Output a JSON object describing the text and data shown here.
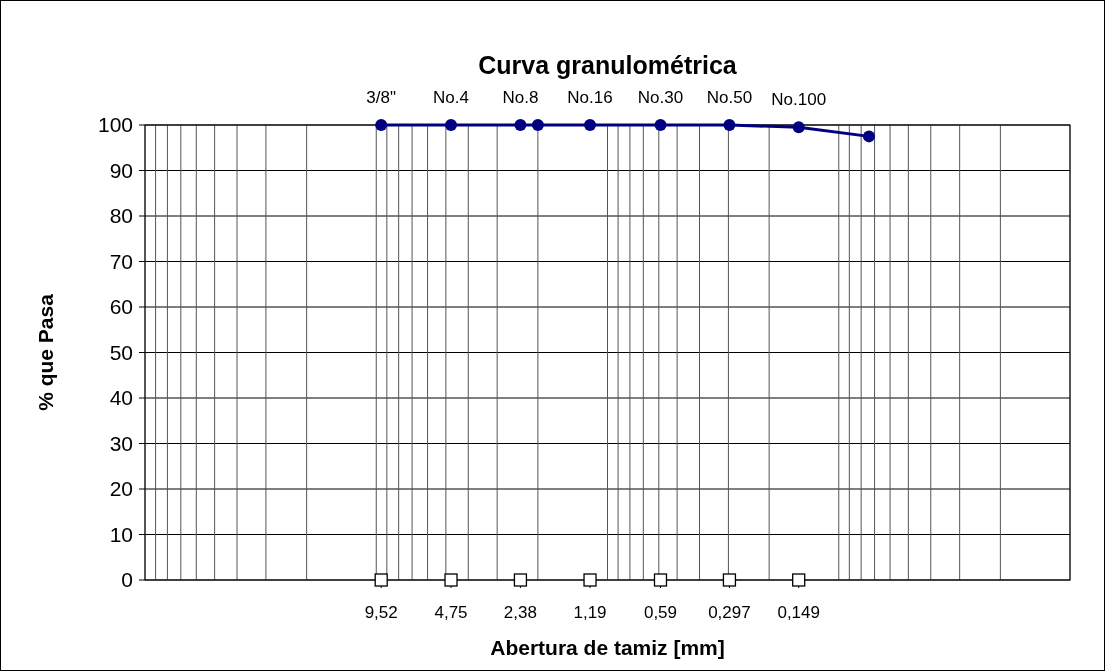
{
  "chart_data": {
    "type": "line",
    "title": "Curva granulométrica",
    "xlabel": "Abertura de tamiz [mm]",
    "ylabel": "% que Pasa",
    "log": "x",
    "xlim": [
      100,
      0.01
    ],
    "ylim": [
      0,
      100
    ],
    "yticks": [
      0,
      10,
      20,
      30,
      40,
      50,
      60,
      70,
      80,
      90,
      100
    ],
    "xticks": [
      {
        "value": 9.52,
        "label": "9,52"
      },
      {
        "value": 4.75,
        "label": "4,75"
      },
      {
        "value": 2.38,
        "label": "2,38"
      },
      {
        "value": 1.19,
        "label": "1,19"
      },
      {
        "value": 0.59,
        "label": "0,59"
      },
      {
        "value": 0.297,
        "label": "0,297"
      },
      {
        "value": 0.149,
        "label": "0,149"
      }
    ],
    "grid": true,
    "series": [
      {
        "type": "line",
        "color": "#000080",
        "marker": "circle",
        "line_style": "solid",
        "x": [
          9.52,
          4.75,
          2.38,
          2.0,
          1.19,
          0.59,
          0.297,
          0.149,
          0.074
        ],
        "values": [
          100,
          100,
          100,
          100,
          100,
          100,
          100,
          99.5,
          97.5
        ]
      },
      {
        "type": "scatter",
        "color": "#000000",
        "marker": "square",
        "x": [
          9.52,
          4.75,
          2.38,
          1.19,
          0.59,
          0.297,
          0.149
        ],
        "values": [
          0,
          0,
          0,
          0,
          0,
          0,
          0
        ]
      }
    ],
    "annotations": [
      {
        "text": "3/8\"",
        "x": 9.52,
        "y": 100
      },
      {
        "text": "No.4",
        "x": 4.75,
        "y": 100
      },
      {
        "text": "No.8",
        "x": 2.38,
        "y": 100
      },
      {
        "text": "No.16",
        "x": 1.19,
        "y": 100
      },
      {
        "text": "No.30",
        "x": 0.59,
        "y": 100
      },
      {
        "text": "No.50",
        "x": 0.297,
        "y": 100
      },
      {
        "text": "No.100",
        "x": 0.149,
        "y": 99.5
      }
    ]
  }
}
